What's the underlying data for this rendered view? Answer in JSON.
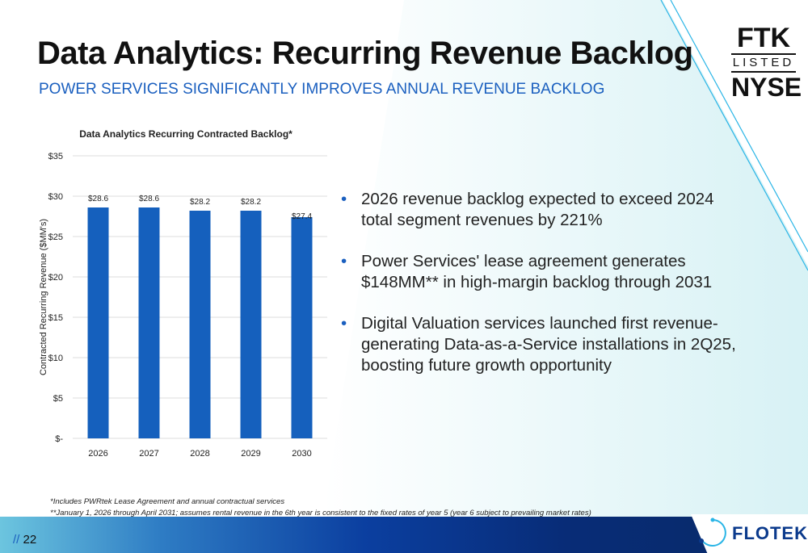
{
  "header": {
    "title": "Data Analytics: Recurring Revenue Backlog",
    "subtitle": "POWER SERVICES SIGNIFICANTLY IMPROVES ANNUAL REVENUE BACKLOG"
  },
  "logo": {
    "line1": "FTK",
    "line2": "LISTED",
    "line3": "NYSE"
  },
  "chart_data": {
    "type": "bar",
    "title": "Data Analytics Recurring Contracted Backlog*",
    "ylabel": "Contracted Recurring Revenue ($MM's)",
    "xlabel": "",
    "categories": [
      "2026",
      "2027",
      "2028",
      "2029",
      "2030"
    ],
    "values": [
      28.6,
      28.6,
      28.2,
      28.2,
      27.4
    ],
    "data_labels": [
      "$28.6",
      "$28.6",
      "$28.2",
      "$28.2",
      "$27.4"
    ],
    "ylim": [
      0,
      35
    ],
    "yticks": [
      0,
      5,
      10,
      15,
      20,
      25,
      30,
      35
    ],
    "ytick_labels": [
      "$-",
      "$5",
      "$10",
      "$15",
      "$20",
      "$25",
      "$30",
      "$35"
    ],
    "grid": true,
    "bar_color": "#1560bd"
  },
  "bullets": [
    "2026 revenue backlog expected to exceed 2024 total segment revenues by 221%",
    "Power Services' lease agreement generates $148MM** in high-margin backlog through 2031",
    "Digital Valuation services launched first revenue-generating Data-as-a-Service installations in 2Q25, boosting future growth opportunity"
  ],
  "footnotes": [
    "*Includes PWRtek Lease Agreement and annual contractual services",
    "**January 1, 2026 through April 2031; assumes rental revenue in the 6th year is consistent to the fixed rates of year 5 (year 6  subject to prevailing market rates)"
  ],
  "footer": {
    "page_prefix": "//",
    "page": "22",
    "brand": "FLOTEK"
  }
}
